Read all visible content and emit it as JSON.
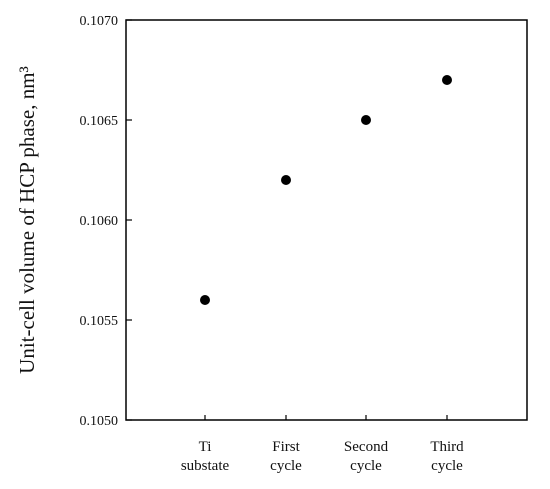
{
  "chart_data": {
    "type": "scatter",
    "categories": [
      "Ti substate",
      "First cycle",
      "Second cycle",
      "Third cycle"
    ],
    "category_lines": [
      [
        "Ti",
        "substate"
      ],
      [
        "First",
        "cycle"
      ],
      [
        "Second",
        "cycle"
      ],
      [
        "Third",
        "cycle"
      ]
    ],
    "values": [
      0.1056,
      0.1062,
      0.1065,
      0.1067
    ],
    "xlabel": "",
    "ylabel": "Unit-cell volume of HCP phase, nm³",
    "ylim": [
      0.105,
      0.107
    ],
    "yticks": [
      "0.1050",
      "0.1055",
      "0.1060",
      "0.1065",
      "0.1070"
    ],
    "grid": false,
    "legend": "none",
    "colors": {
      "axis": "#000000",
      "marker": "#000000",
      "text": "#111111"
    }
  }
}
